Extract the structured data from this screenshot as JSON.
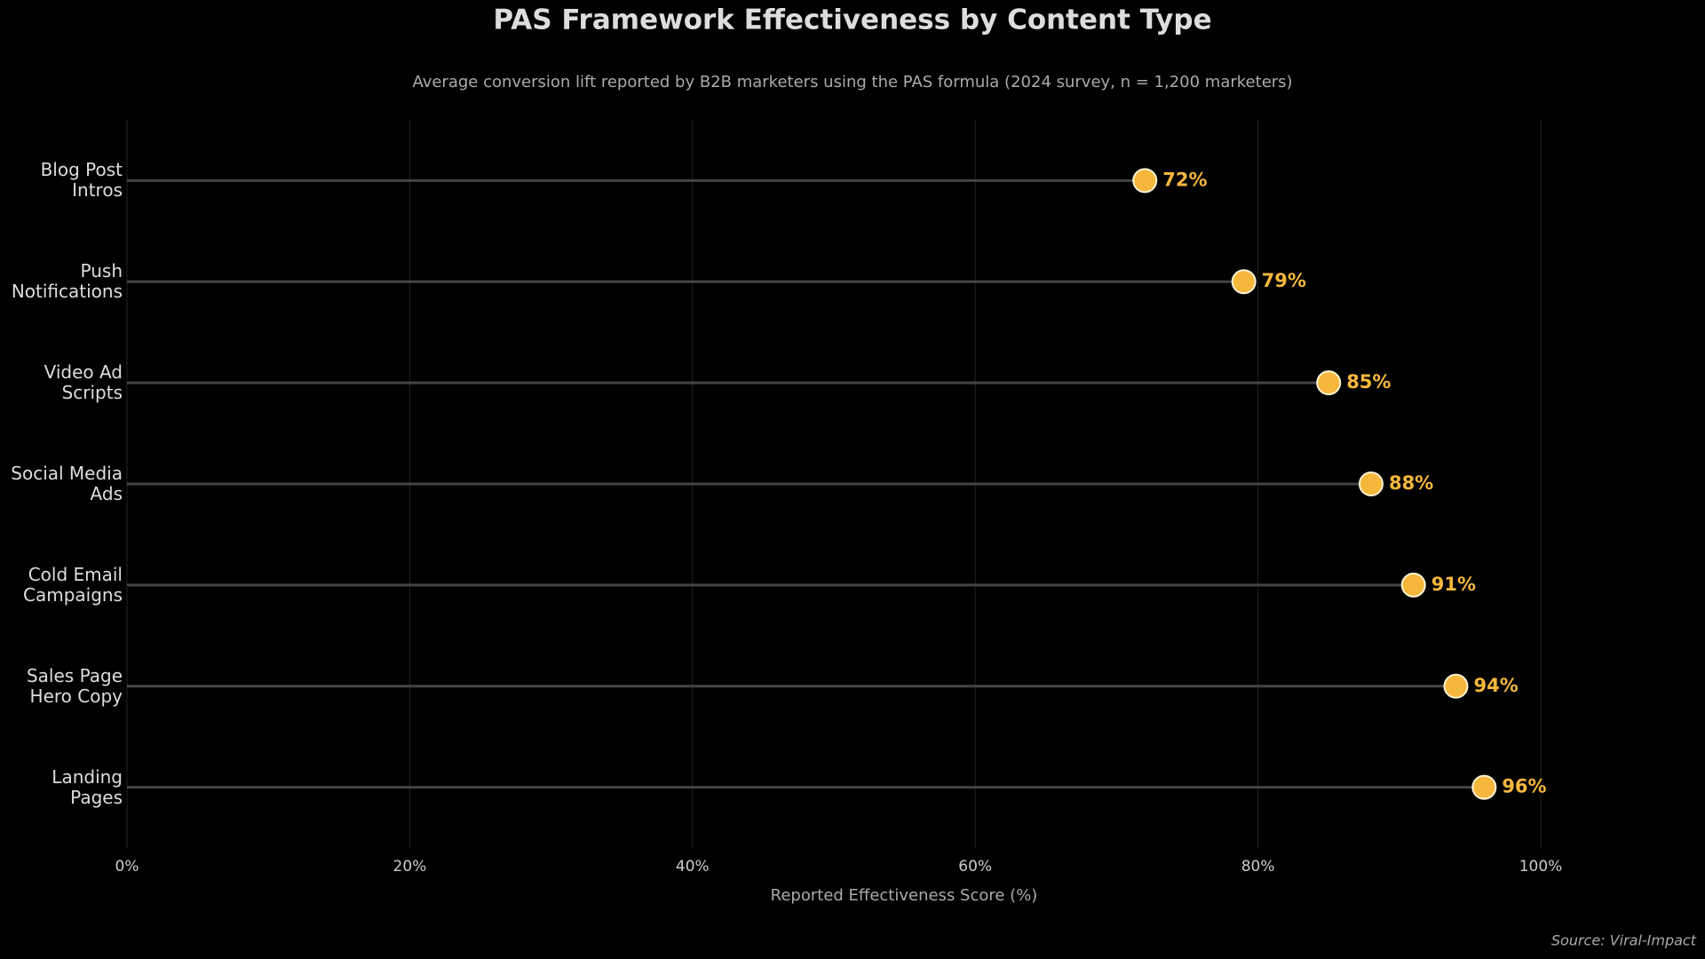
{
  "chart_data": {
    "type": "lollipop",
    "title": "PAS Framework Effectiveness by Content Type",
    "subtitle": "Average conversion lift reported by B2B marketers using the PAS formula (2024 survey, n = 1,200 marketers)",
    "x_label": "Reported Effectiveness Score (%)",
    "source": "Source: Viral-Impact",
    "categories": [
      "Blog Post\nIntros",
      "Push\nNotifications",
      "Video Ad\nScripts",
      "Social Media\nAds",
      "Cold Email\nCampaigns",
      "Sales Page\nHero Copy",
      "Landing\nPages"
    ],
    "values": [
      72,
      79,
      85,
      88,
      91,
      94,
      96
    ],
    "value_labels": [
      "72%",
      "79%",
      "85%",
      "88%",
      "91%",
      "94%",
      "96%"
    ],
    "color": "#f6b73c",
    "xlim": [
      0,
      100
    ],
    "xticks": [
      {
        "value": 0,
        "label": "0%"
      },
      {
        "value": 20,
        "label": "20%"
      },
      {
        "value": 40,
        "label": "40%"
      },
      {
        "value": 60,
        "label": "60%"
      },
      {
        "value": 80,
        "label": "80%"
      },
      {
        "value": 100,
        "label": "100%"
      }
    ],
    "grid": true
  }
}
